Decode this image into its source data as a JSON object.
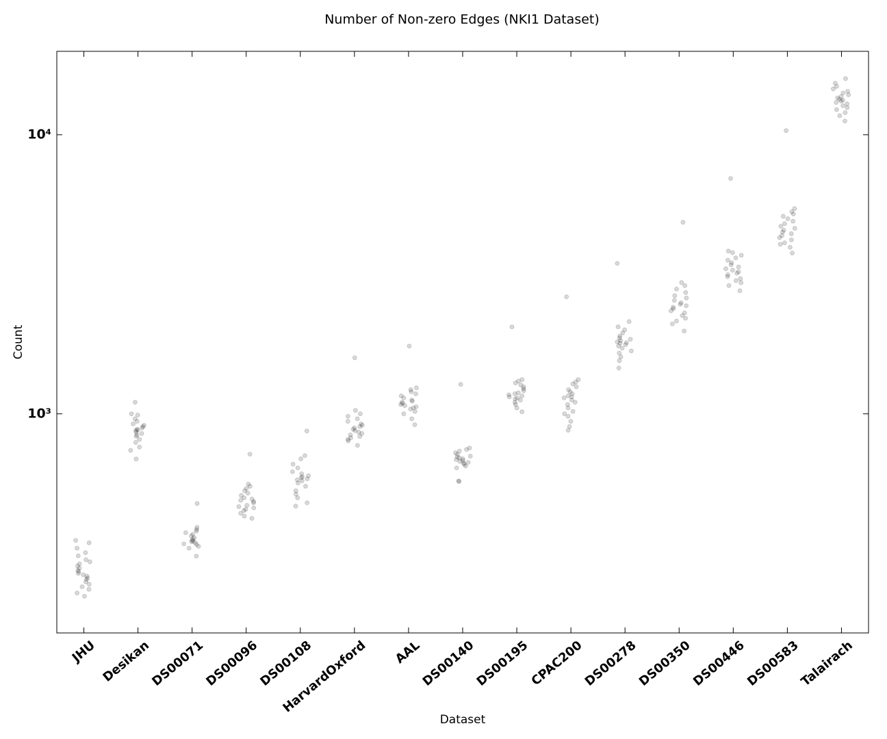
{
  "chart_data": {
    "type": "strip",
    "title": "Number of Non-zero Edges (NKI1 Dataset)",
    "xlabel": "Dataset",
    "ylabel": "Count",
    "categories": [
      "JHU",
      "Desikan",
      "DS00071",
      "DS00096",
      "DS00108",
      "HarvardOxford",
      "AAL",
      "DS00140",
      "DS00195",
      "CPAC200",
      "DS00278",
      "DS00350",
      "DS00446",
      "DS00583",
      "Talairach"
    ],
    "values": [
      [
        352,
        345,
        330,
        318,
        310,
        300,
        295,
        290,
        285,
        280,
        275,
        272,
        268,
        265,
        262,
        258,
        255,
        250,
        245,
        240,
        235,
        228,
        222
      ],
      [
        1100,
        1000,
        990,
        960,
        940,
        920,
        910,
        900,
        890,
        880,
        875,
        870,
        860,
        850,
        840,
        830,
        810,
        790,
        760,
        740,
        689
      ],
      [
        477,
        392,
        385,
        380,
        375,
        370,
        365,
        360,
        356,
        352,
        350,
        348,
        345,
        342,
        340,
        335,
        330,
        309
      ],
      [
        717,
        560,
        550,
        540,
        530,
        520,
        510,
        500,
        495,
        490,
        485,
        480,
        470,
        465,
        460,
        455,
        450,
        440,
        430,
        422
      ],
      [
        868,
        708,
        690,
        660,
        640,
        620,
        610,
        600,
        595,
        590,
        585,
        580,
        575,
        565,
        550,
        530,
        515,
        500,
        480,
        467
      ],
      [
        1588,
        1029,
        1000,
        980,
        960,
        940,
        920,
        910,
        900,
        890,
        880,
        870,
        860,
        850,
        840,
        830,
        820,
        810,
        800,
        771
      ],
      [
        1748,
        1239,
        1220,
        1200,
        1180,
        1160,
        1140,
        1120,
        1110,
        1100,
        1090,
        1080,
        1070,
        1060,
        1050,
        1040,
        1020,
        1000,
        960,
        914
      ],
      [
        1275,
        754,
        745,
        735,
        725,
        715,
        705,
        700,
        695,
        690,
        685,
        680,
        675,
        670,
        665,
        660,
        650,
        640,
        575,
        572
      ],
      [
        2048,
        1326,
        1310,
        1290,
        1270,
        1250,
        1230,
        1210,
        1190,
        1180,
        1170,
        1160,
        1150,
        1140,
        1130,
        1120,
        1100,
        1080,
        1050,
        1017
      ],
      [
        2625,
        1326,
        1300,
        1280,
        1250,
        1220,
        1200,
        1180,
        1160,
        1150,
        1140,
        1120,
        1100,
        1080,
        1050,
        1020,
        1000,
        980,
        940,
        900,
        873
      ],
      [
        3461,
        2142,
        2050,
        2000,
        1950,
        1900,
        1870,
        1850,
        1830,
        1810,
        1800,
        1790,
        1770,
        1750,
        1720,
        1680,
        1650,
        1600,
        1550,
        1459
      ],
      [
        4856,
        2954,
        2880,
        2800,
        2720,
        2650,
        2600,
        2550,
        2500,
        2470,
        2440,
        2410,
        2380,
        2340,
        2300,
        2250,
        2200,
        2150,
        2100,
        1980
      ],
      [
        6970,
        3830,
        3780,
        3700,
        3620,
        3550,
        3480,
        3420,
        3360,
        3310,
        3270,
        3230,
        3190,
        3150,
        3100,
        3050,
        3000,
        2950,
        2880,
        2760
      ],
      [
        10345,
        5436,
        5300,
        5200,
        5100,
        5000,
        4900,
        4800,
        4700,
        4620,
        4550,
        4480,
        4420,
        4350,
        4280,
        4200,
        4100,
        4050,
        3950,
        3767
      ],
      [
        15890,
        15300,
        14900,
        14600,
        14300,
        14100,
        13900,
        13700,
        13550,
        13400,
        13300,
        13200,
        13050,
        12900,
        12700,
        12500,
        12300,
        12000,
        11700,
        11200
      ]
    ],
    "color": "#000000",
    "alpha": 0.15,
    "ylim": [
      164,
      19900
    ],
    "log_y": true,
    "yticks": [
      {
        "value": 1000,
        "label": "10³"
      },
      {
        "value": 10000,
        "label": "10⁴"
      }
    ],
    "grid": false
  }
}
